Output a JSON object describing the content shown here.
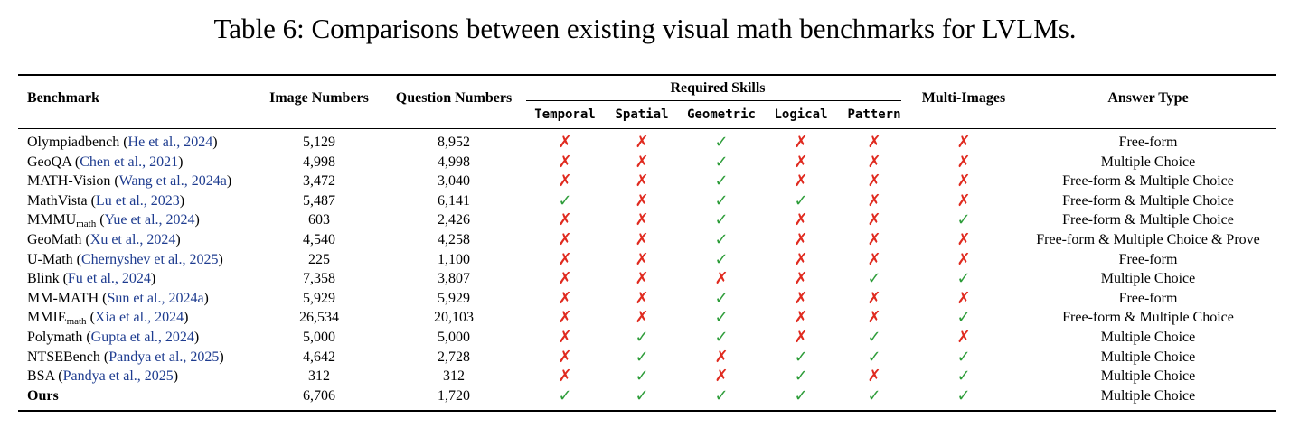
{
  "caption": "Table 6: Comparisons between existing visual math benchmarks for LVLMs.",
  "headers": {
    "benchmark": "Benchmark",
    "image_numbers": "Image Numbers",
    "question_numbers": "Question Numbers",
    "required_skills": "Required Skills",
    "multi_images": "Multi-Images",
    "answer_type": "Answer Type",
    "skills": [
      "Temporal",
      "Spatial",
      "Geometric",
      "Logical",
      "Pattern"
    ]
  },
  "symbols": {
    "check": "✓",
    "cross": "✗"
  },
  "colors": {
    "check": "#2e9d3a",
    "cross": "#e02a1f",
    "citation": "#1d3b8f"
  },
  "rows": [
    {
      "name": "Olympiadbench",
      "sub": "",
      "cite": "He et al., 2024",
      "images": "5,129",
      "questions": "8,952",
      "skills": [
        0,
        0,
        1,
        0,
        0
      ],
      "multi": 0,
      "answer": "Free-form"
    },
    {
      "name": "GeoQA",
      "sub": "",
      "cite": "Chen et al., 2021",
      "images": "4,998",
      "questions": "4,998",
      "skills": [
        0,
        0,
        1,
        0,
        0
      ],
      "multi": 0,
      "answer": "Multiple Choice"
    },
    {
      "name": "MATH-Vision",
      "sub": "",
      "cite": "Wang et al., 2024a",
      "images": "3,472",
      "questions": "3,040",
      "skills": [
        0,
        0,
        1,
        0,
        0
      ],
      "multi": 0,
      "answer": "Free-form & Multiple Choice"
    },
    {
      "name": "MathVista",
      "sub": "",
      "cite": "Lu et al., 2023",
      "images": "5,487",
      "questions": "6,141",
      "skills": [
        1,
        0,
        1,
        1,
        0
      ],
      "multi": 0,
      "answer": "Free-form & Multiple Choice"
    },
    {
      "name": "MMMU",
      "sub": "math",
      "cite": "Yue et al., 2024",
      "images": "603",
      "questions": "2,426",
      "skills": [
        0,
        0,
        1,
        0,
        0
      ],
      "multi": 1,
      "answer": "Free-form & Multiple Choice"
    },
    {
      "name": "GeoMath",
      "sub": "",
      "cite": "Xu et al., 2024",
      "images": "4,540",
      "questions": "4,258",
      "skills": [
        0,
        0,
        1,
        0,
        0
      ],
      "multi": 0,
      "answer": "Free-form & Multiple Choice & Prove"
    },
    {
      "name": "U-Math",
      "sub": "",
      "cite": "Chernyshev et al., 2025",
      "images": "225",
      "questions": "1,100",
      "skills": [
        0,
        0,
        1,
        0,
        0
      ],
      "multi": 0,
      "answer": "Free-form"
    },
    {
      "name": "Blink",
      "sub": "",
      "cite": "Fu et al., 2024",
      "images": "7,358",
      "questions": "3,807",
      "skills": [
        0,
        0,
        0,
        0,
        1
      ],
      "multi": 1,
      "answer": "Multiple Choice"
    },
    {
      "name": "MM-MATH",
      "sub": "",
      "cite": "Sun et al., 2024a",
      "images": "5,929",
      "questions": "5,929",
      "skills": [
        0,
        0,
        1,
        0,
        0
      ],
      "multi": 0,
      "answer": "Free-form"
    },
    {
      "name": "MMIE",
      "sub": "math",
      "cite": "Xia et al., 2024",
      "images": "26,534",
      "questions": "20,103",
      "skills": [
        0,
        0,
        1,
        0,
        0
      ],
      "multi": 1,
      "answer": "Free-form & Multiple Choice"
    },
    {
      "name": "Polymath",
      "sub": "",
      "cite": "Gupta et al., 2024",
      "images": "5,000",
      "questions": "5,000",
      "skills": [
        0,
        1,
        1,
        0,
        1
      ],
      "multi": 0,
      "answer": "Multiple Choice"
    },
    {
      "name": "NTSEBench",
      "sub": "",
      "cite": "Pandya et al., 2025",
      "images": "4,642",
      "questions": "2,728",
      "skills": [
        0,
        1,
        0,
        1,
        1
      ],
      "multi": 1,
      "answer": "Multiple Choice"
    },
    {
      "name": "BSA",
      "sub": "",
      "cite": "Pandya et al., 2025",
      "images": "312",
      "questions": "312",
      "skills": [
        0,
        1,
        0,
        1,
        0
      ],
      "multi": 1,
      "answer": "Multiple Choice"
    },
    {
      "name": "Ours",
      "sub": "",
      "cite": "",
      "images": "6,706",
      "questions": "1,720",
      "skills": [
        1,
        1,
        1,
        1,
        1
      ],
      "multi": 1,
      "answer": "Multiple Choice",
      "highlight": true
    }
  ]
}
